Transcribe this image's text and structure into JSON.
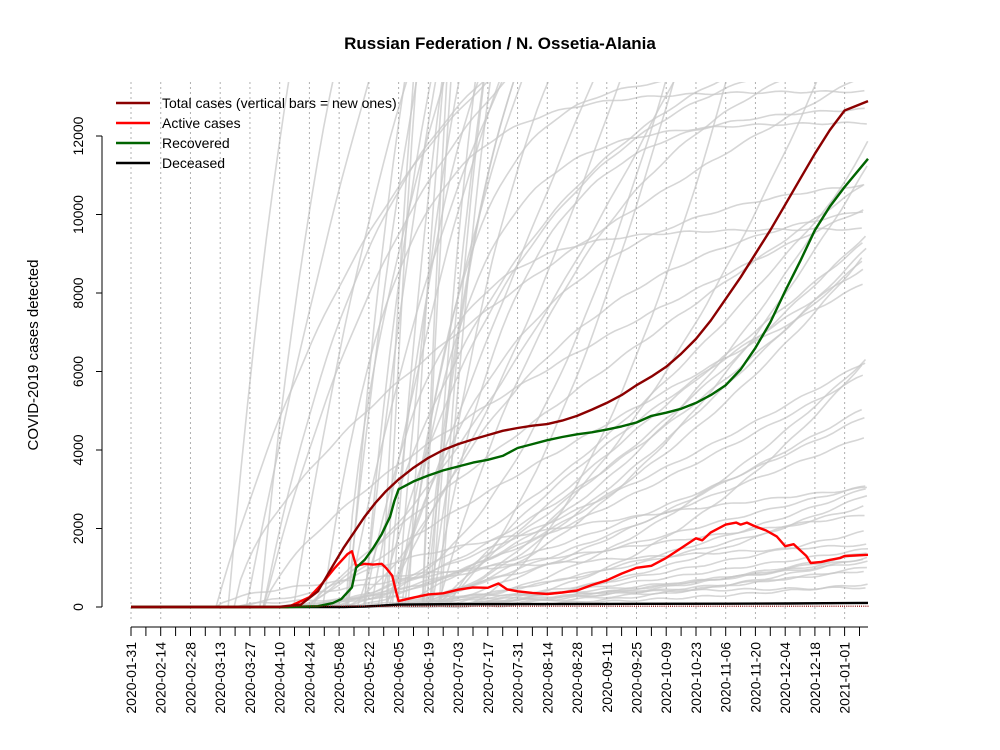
{
  "chart_data": {
    "type": "line",
    "title": "Russian Federation / N. Ossetia-Alania",
    "xlabel": "",
    "ylabel": "COVID-2019 cases detected",
    "x_range": [
      "2020-01-31",
      "2021-01-12"
    ],
    "ylim": [
      -250,
      13300
    ],
    "y_ticks": [
      0,
      2000,
      4000,
      6000,
      8000,
      10000,
      12000
    ],
    "x_ticks": [
      "2020-01-31",
      "2020-02-14",
      "2020-02-28",
      "2020-03-13",
      "2020-03-27",
      "2020-04-10",
      "2020-04-24",
      "2020-05-08",
      "2020-05-22",
      "2020-06-05",
      "2020-06-19",
      "2020-07-03",
      "2020-07-17",
      "2020-07-31",
      "2020-08-14",
      "2020-08-28",
      "2020-09-11",
      "2020-09-25",
      "2020-10-09",
      "2020-10-23",
      "2020-11-06",
      "2020-11-20",
      "2020-12-04",
      "2020-12-18",
      "2021-01-01"
    ],
    "grid": "vertical dotted lines at every 14 days",
    "legend_position": "top-left",
    "colors": {
      "total": "#8b0000",
      "active": "#ff0000",
      "recovered": "#006400",
      "deceased": "#000000",
      "background_regions": "#c8c8c8"
    },
    "series": [
      {
        "name": "Total cases (vertical bars = new ones)",
        "key": "total",
        "points": [
          [
            "2020-01-31",
            0
          ],
          [
            "2020-03-27",
            0
          ],
          [
            "2020-04-10",
            5
          ],
          [
            "2020-04-20",
            60
          ],
          [
            "2020-04-28",
            400
          ],
          [
            "2020-05-05",
            1050
          ],
          [
            "2020-05-10",
            1500
          ],
          [
            "2020-05-15",
            1900
          ],
          [
            "2020-05-20",
            2300
          ],
          [
            "2020-05-25",
            2650
          ],
          [
            "2020-05-30",
            2950
          ],
          [
            "2020-06-05",
            3250
          ],
          [
            "2020-06-12",
            3550
          ],
          [
            "2020-06-19",
            3800
          ],
          [
            "2020-06-26",
            4000
          ],
          [
            "2020-07-03",
            4150
          ],
          [
            "2020-07-10",
            4270
          ],
          [
            "2020-07-17",
            4380
          ],
          [
            "2020-07-24",
            4490
          ],
          [
            "2020-07-31",
            4560
          ],
          [
            "2020-08-07",
            4620
          ],
          [
            "2020-08-14",
            4660
          ],
          [
            "2020-08-21",
            4750
          ],
          [
            "2020-08-28",
            4870
          ],
          [
            "2020-09-04",
            5030
          ],
          [
            "2020-09-11",
            5200
          ],
          [
            "2020-09-18",
            5400
          ],
          [
            "2020-09-25",
            5650
          ],
          [
            "2020-10-02",
            5870
          ],
          [
            "2020-10-09",
            6120
          ],
          [
            "2020-10-16",
            6450
          ],
          [
            "2020-10-23",
            6830
          ],
          [
            "2020-10-30",
            7300
          ],
          [
            "2020-11-06",
            7850
          ],
          [
            "2020-11-13",
            8400
          ],
          [
            "2020-11-20",
            9000
          ],
          [
            "2020-11-27",
            9600
          ],
          [
            "2020-12-04",
            10250
          ],
          [
            "2020-12-11",
            10900
          ],
          [
            "2020-12-18",
            11550
          ],
          [
            "2020-12-25",
            12150
          ],
          [
            "2021-01-01",
            12650
          ],
          [
            "2021-01-12",
            12890
          ]
        ]
      },
      {
        "name": "Active cases",
        "key": "active",
        "points": [
          [
            "2020-01-31",
            0
          ],
          [
            "2020-03-27",
            0
          ],
          [
            "2020-04-14",
            0
          ],
          [
            "2020-04-24",
            250
          ],
          [
            "2020-04-30",
            600
          ],
          [
            "2020-05-06",
            1000
          ],
          [
            "2020-05-12",
            1350
          ],
          [
            "2020-05-14",
            1420
          ],
          [
            "2020-05-16",
            1050
          ],
          [
            "2020-05-20",
            1100
          ],
          [
            "2020-05-24",
            1080
          ],
          [
            "2020-05-28",
            1100
          ],
          [
            "2020-05-30",
            1000
          ],
          [
            "2020-06-02",
            800
          ],
          [
            "2020-06-04",
            350
          ],
          [
            "2020-06-05",
            150
          ],
          [
            "2020-06-12",
            240
          ],
          [
            "2020-06-19",
            320
          ],
          [
            "2020-06-26",
            350
          ],
          [
            "2020-07-03",
            440
          ],
          [
            "2020-07-10",
            500
          ],
          [
            "2020-07-17",
            490
          ],
          [
            "2020-07-22",
            600
          ],
          [
            "2020-07-26",
            450
          ],
          [
            "2020-07-31",
            400
          ],
          [
            "2020-08-07",
            360
          ],
          [
            "2020-08-14",
            330
          ],
          [
            "2020-08-21",
            370
          ],
          [
            "2020-08-28",
            420
          ],
          [
            "2020-09-04",
            560
          ],
          [
            "2020-09-11",
            680
          ],
          [
            "2020-09-18",
            850
          ],
          [
            "2020-09-25",
            1000
          ],
          [
            "2020-10-02",
            1050
          ],
          [
            "2020-10-09",
            1250
          ],
          [
            "2020-10-16",
            1500
          ],
          [
            "2020-10-23",
            1750
          ],
          [
            "2020-10-26",
            1700
          ],
          [
            "2020-10-30",
            1900
          ],
          [
            "2020-11-06",
            2100
          ],
          [
            "2020-11-11",
            2150
          ],
          [
            "2020-11-13",
            2100
          ],
          [
            "2020-11-16",
            2150
          ],
          [
            "2020-11-20",
            2050
          ],
          [
            "2020-11-25",
            1950
          ],
          [
            "2020-11-30",
            1800
          ],
          [
            "2020-12-04",
            1550
          ],
          [
            "2020-12-08",
            1600
          ],
          [
            "2020-12-11",
            1450
          ],
          [
            "2020-12-14",
            1300
          ],
          [
            "2020-12-16",
            1120
          ],
          [
            "2020-12-21",
            1150
          ],
          [
            "2020-12-25",
            1200
          ],
          [
            "2020-12-30",
            1250
          ],
          [
            "2021-01-01",
            1300
          ],
          [
            "2021-01-12",
            1330
          ]
        ]
      },
      {
        "name": "Recovered",
        "key": "recovered",
        "points": [
          [
            "2020-01-31",
            0
          ],
          [
            "2020-04-14",
            0
          ],
          [
            "2020-04-28",
            20
          ],
          [
            "2020-05-05",
            100
          ],
          [
            "2020-05-09",
            200
          ],
          [
            "2020-05-14",
            500
          ],
          [
            "2020-05-16",
            1000
          ],
          [
            "2020-05-20",
            1200
          ],
          [
            "2020-05-24",
            1500
          ],
          [
            "2020-05-28",
            1850
          ],
          [
            "2020-06-01",
            2300
          ],
          [
            "2020-06-03",
            2700
          ],
          [
            "2020-06-05",
            3000
          ],
          [
            "2020-06-12",
            3200
          ],
          [
            "2020-06-19",
            3350
          ],
          [
            "2020-06-26",
            3480
          ],
          [
            "2020-07-03",
            3580
          ],
          [
            "2020-07-10",
            3680
          ],
          [
            "2020-07-17",
            3750
          ],
          [
            "2020-07-24",
            3850
          ],
          [
            "2020-07-31",
            4050
          ],
          [
            "2020-08-07",
            4150
          ],
          [
            "2020-08-14",
            4250
          ],
          [
            "2020-08-21",
            4330
          ],
          [
            "2020-08-28",
            4400
          ],
          [
            "2020-09-04",
            4450
          ],
          [
            "2020-09-11",
            4520
          ],
          [
            "2020-09-18",
            4600
          ],
          [
            "2020-09-25",
            4700
          ],
          [
            "2020-10-02",
            4870
          ],
          [
            "2020-10-09",
            4950
          ],
          [
            "2020-10-16",
            5050
          ],
          [
            "2020-10-23",
            5200
          ],
          [
            "2020-10-30",
            5400
          ],
          [
            "2020-11-06",
            5650
          ],
          [
            "2020-11-13",
            6050
          ],
          [
            "2020-11-20",
            6600
          ],
          [
            "2020-11-27",
            7250
          ],
          [
            "2020-12-04",
            8050
          ],
          [
            "2020-12-11",
            8800
          ],
          [
            "2020-12-18",
            9600
          ],
          [
            "2020-12-25",
            10200
          ],
          [
            "2021-01-01",
            10700
          ],
          [
            "2021-01-12",
            11420
          ]
        ]
      },
      {
        "name": "Deceased",
        "key": "deceased",
        "points": [
          [
            "2020-01-31",
            0
          ],
          [
            "2020-05-10",
            0
          ],
          [
            "2020-05-20",
            10
          ],
          [
            "2020-06-05",
            60
          ],
          [
            "2020-07-03",
            75
          ],
          [
            "2020-09-11",
            80
          ],
          [
            "2020-11-06",
            85
          ],
          [
            "2020-12-04",
            90
          ],
          [
            "2021-01-01",
            100
          ],
          [
            "2021-01-12",
            105
          ]
        ]
      }
    ]
  }
}
